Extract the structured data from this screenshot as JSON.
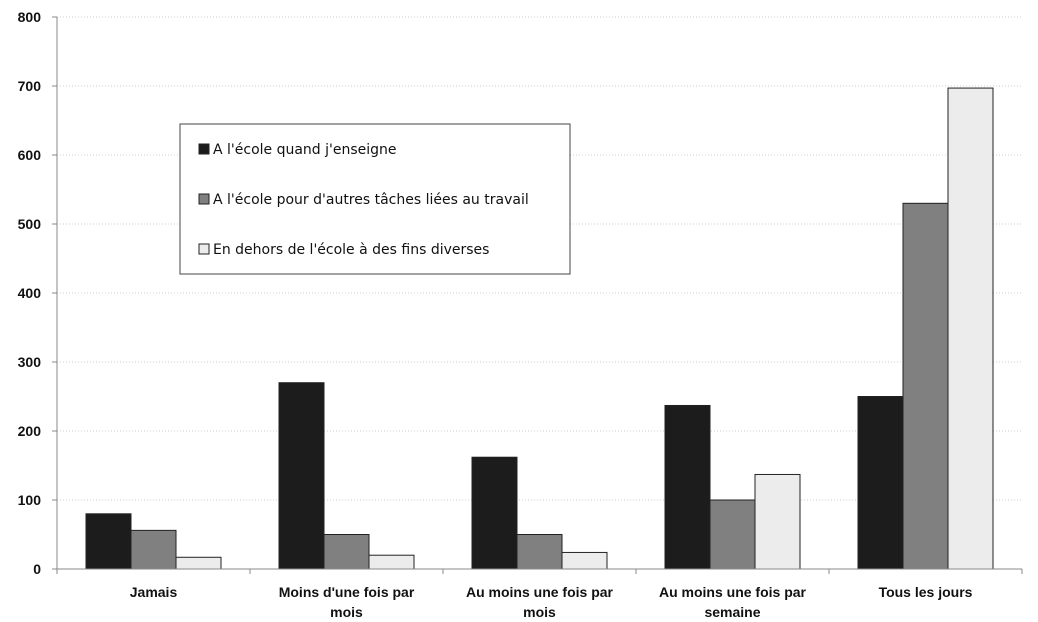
{
  "chart_data": {
    "type": "bar",
    "categories": [
      [
        "Jamais"
      ],
      [
        "Moins d'une fois par",
        "mois"
      ],
      [
        "Au moins une fois par",
        "mois"
      ],
      [
        "Au moins une fois par",
        "semaine"
      ],
      [
        "Tous les jours"
      ]
    ],
    "series": [
      {
        "name": "A l'école quand j'enseigne",
        "color": "#1c1c1c",
        "values": [
          80,
          270,
          162,
          237,
          250
        ]
      },
      {
        "name": "A l'école pour d'autres tâches liées au travail",
        "color": "#808080",
        "values": [
          56,
          50,
          50,
          100,
          530
        ]
      },
      {
        "name": "En dehors de l'école à des fins diverses",
        "color": "#ececec",
        "values": [
          17,
          20,
          24,
          137,
          697
        ]
      }
    ],
    "ylim": [
      0,
      800
    ],
    "yticks": [
      0,
      100,
      200,
      300,
      400,
      500,
      600,
      700,
      800
    ],
    "grid": true,
    "legend_position": "upper-left-inside"
  }
}
